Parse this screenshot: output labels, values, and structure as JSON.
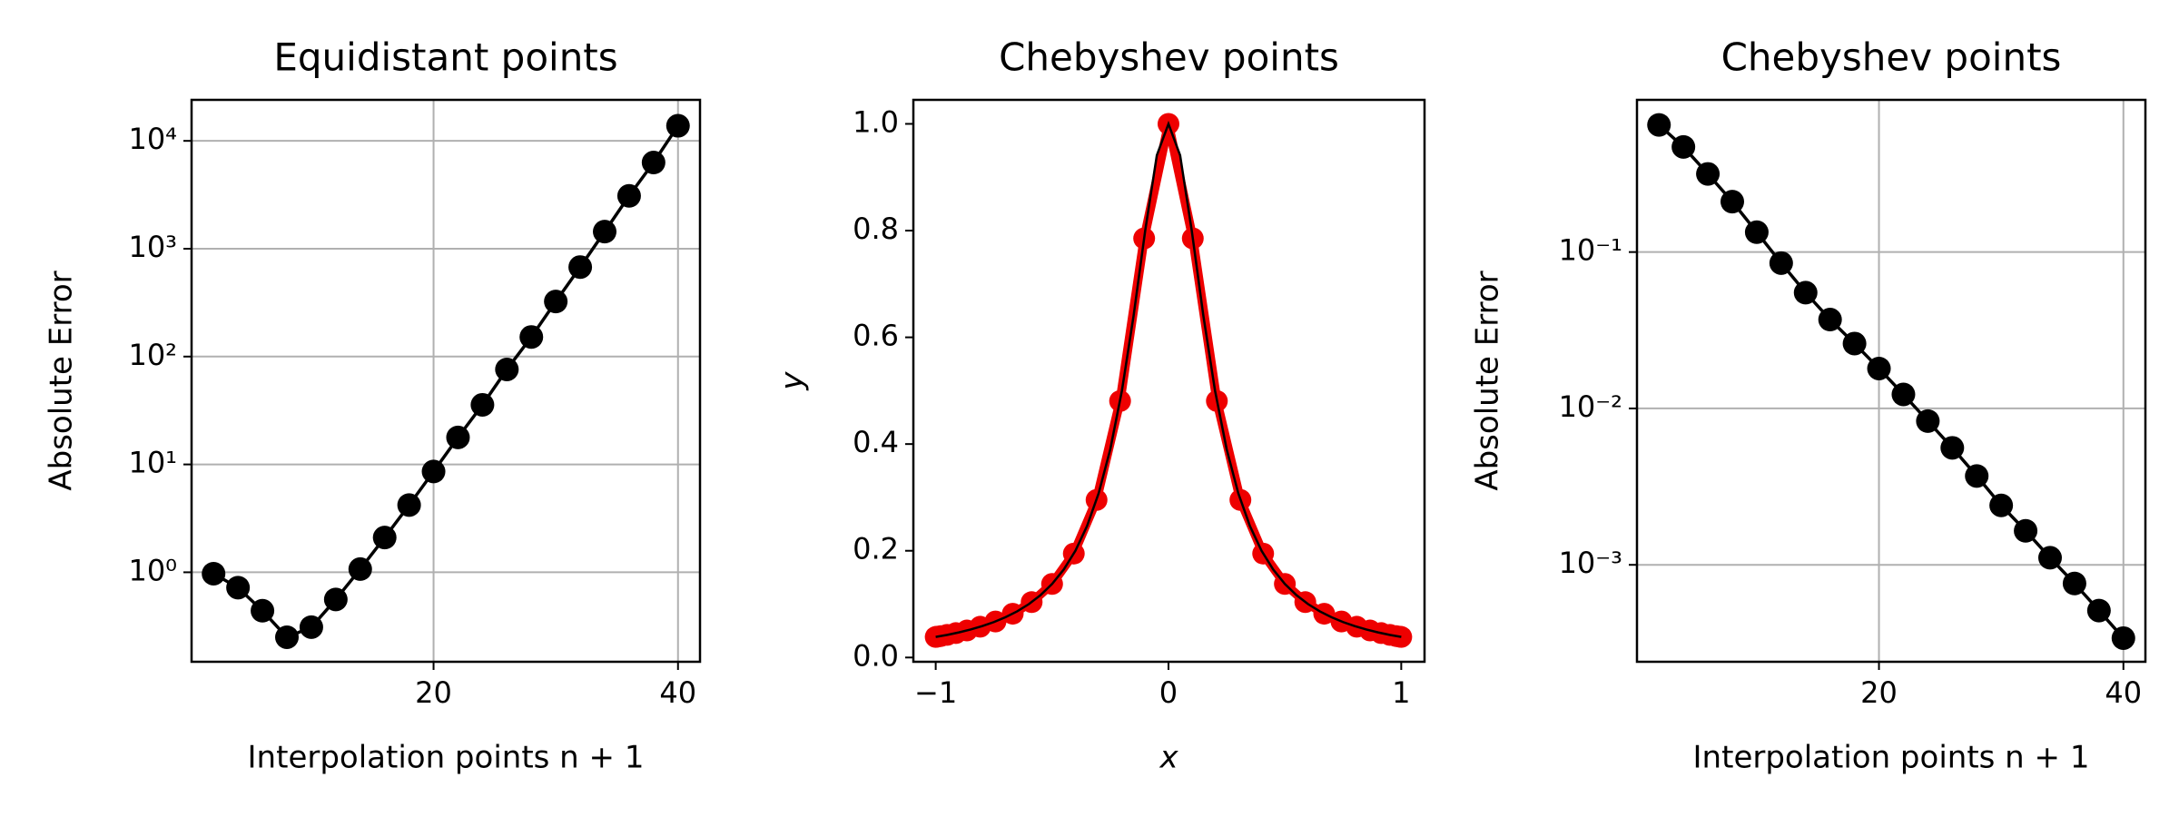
{
  "chart_data": [
    {
      "type": "line",
      "title": "Equidistant points",
      "xlabel": "Interpolation points n + 1",
      "ylabel": "Absolute Error",
      "x": [
        2,
        4,
        6,
        8,
        10,
        12,
        14,
        16,
        18,
        20,
        22,
        24,
        26,
        28,
        30,
        32,
        34,
        36,
        38,
        40
      ],
      "values": [
        0.97,
        0.72,
        0.44,
        0.25,
        0.31,
        0.56,
        1.07,
        2.1,
        4.2,
        8.6,
        17.8,
        35.7,
        76,
        152,
        324,
        676,
        1440,
        3090,
        6300,
        13800
      ],
      "color": "#000000",
      "marker": true,
      "yscale": "log",
      "grid": true,
      "xlim": [
        0.2,
        41.8
      ],
      "ylim": [
        0.148,
        24000
      ],
      "xticks": [
        20,
        40
      ],
      "yticks": [
        {
          "value": 1,
          "label": "10⁰"
        },
        {
          "value": 10,
          "label": "10¹"
        },
        {
          "value": 100,
          "label": "10²"
        },
        {
          "value": 1000,
          "label": "10³"
        },
        {
          "value": 10000,
          "label": "10⁴"
        }
      ]
    },
    {
      "type": "combo",
      "title": "Chebyshev points",
      "xlabel": "x",
      "ylabel": "y",
      "grid": false,
      "series": [
        {
          "type": "scatter",
          "color": "#ee0000",
          "x": [
            -1,
            -0.9945,
            -0.9781,
            -0.9511,
            -0.9135,
            -0.866,
            -0.809,
            -0.7431,
            -0.6691,
            -0.5878,
            -0.5,
            -0.4067,
            -0.309,
            -0.2079,
            -0.1045,
            0,
            0.1045,
            0.2079,
            0.309,
            0.4067,
            0.5,
            0.5878,
            0.6691,
            0.7431,
            0.809,
            0.866,
            0.9135,
            0.9511,
            0.9781,
            0.9945,
            1
          ],
          "values": [
            0.0385,
            0.0389,
            0.0401,
            0.0424,
            0.0457,
            0.0506,
            0.0576,
            0.0675,
            0.082,
            0.1038,
            0.1379,
            0.1947,
            0.2952,
            0.4806,
            0.7854,
            1,
            0.7854,
            0.4806,
            0.2952,
            0.1947,
            0.1379,
            0.1038,
            0.082,
            0.0675,
            0.0576,
            0.0506,
            0.0457,
            0.0424,
            0.0401,
            0.0389,
            0.0385
          ]
        },
        {
          "type": "line",
          "color": "#000000",
          "x": [
            -1,
            -0.95,
            -0.9,
            -0.85,
            -0.8,
            -0.75,
            -0.7,
            -0.65,
            -0.6,
            -0.55,
            -0.5,
            -0.45,
            -0.4,
            -0.35,
            -0.3,
            -0.25,
            -0.2,
            -0.15,
            -0.1,
            -0.05,
            0,
            0.05,
            0.1,
            0.15,
            0.2,
            0.25,
            0.3,
            0.35,
            0.4,
            0.45,
            0.5,
            0.55,
            0.6,
            0.65,
            0.7,
            0.75,
            0.8,
            0.85,
            0.9,
            0.95,
            1
          ],
          "values": [
            0.0385,
            0.0424,
            0.0471,
            0.0525,
            0.0588,
            0.0664,
            0.0755,
            0.0865,
            0.1,
            0.1168,
            0.1379,
            0.1649,
            0.2,
            0.2462,
            0.3077,
            0.3902,
            0.5,
            0.64,
            0.8,
            0.9412,
            1,
            0.9412,
            0.8,
            0.64,
            0.5,
            0.3902,
            0.3077,
            0.2462,
            0.2,
            0.1649,
            0.1379,
            0.1168,
            0.1,
            0.0865,
            0.0755,
            0.0664,
            0.0588,
            0.0525,
            0.0471,
            0.0424,
            0.0385
          ]
        }
      ],
      "xlim": [
        -1.096,
        1.1
      ],
      "ylim": [
        -0.008,
        1.045
      ],
      "xticks": [
        {
          "value": -1,
          "label": "−1"
        },
        0,
        1
      ],
      "yticks": [
        {
          "value": 0,
          "label": "0.0"
        },
        0.2,
        0.4,
        0.6,
        0.8,
        {
          "value": 1,
          "label": "1.0"
        }
      ]
    },
    {
      "type": "line",
      "title": "Chebyshev points",
      "xlabel": "Interpolation points n + 1",
      "ylabel": "Absolute Error",
      "x": [
        2,
        4,
        6,
        8,
        10,
        12,
        14,
        16,
        18,
        20,
        22,
        24,
        26,
        28,
        30,
        32,
        34,
        36,
        38,
        40
      ],
      "values": [
        0.65,
        0.47,
        0.316,
        0.21,
        0.134,
        0.085,
        0.055,
        0.037,
        0.026,
        0.018,
        0.0123,
        0.0083,
        0.0056,
        0.0037,
        0.0024,
        0.00165,
        0.00111,
        0.00076,
        0.00051,
        0.00034
      ],
      "color": "#000000",
      "marker": true,
      "yscale": "log",
      "grid": true,
      "xlim": [
        0.2,
        41.8
      ],
      "ylim": [
        0.00024,
        0.94
      ],
      "xticks": [
        20,
        40
      ],
      "yticks": [
        {
          "value": 0.001,
          "label": "10⁻³"
        },
        {
          "value": 0.01,
          "label": "10⁻²"
        },
        {
          "value": 0.1,
          "label": "10⁻¹"
        }
      ]
    }
  ]
}
